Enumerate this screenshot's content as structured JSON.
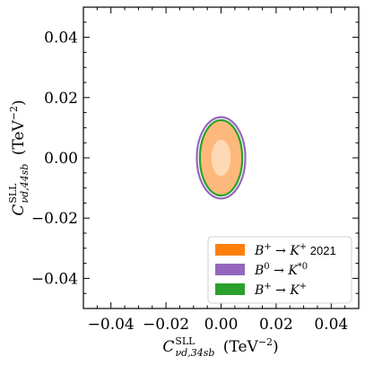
{
  "chart_data": {
    "type": "contour",
    "xlabel": "C^SLL_νd,34sb (TeV⁻²)",
    "xlabel_parts": {
      "symbol": "C",
      "sup": "SLL",
      "sub": "νd,34sb",
      "unit": "(TeV⁻²)"
    },
    "ylabel": "C^SLL_νd,44sb (TeV⁻²)",
    "ylabel_parts": {
      "symbol": "C",
      "sup": "SLL",
      "sub": "νd,44sb",
      "unit": "(TeV⁻²)"
    },
    "xlim": [
      -0.05,
      0.05
    ],
    "ylim": [
      -0.05,
      0.05
    ],
    "xticks": [
      -0.04,
      -0.02,
      0.0,
      0.02,
      0.04
    ],
    "xtick_labels": [
      "−0.04",
      "−0.02",
      "0.00",
      "0.02",
      "0.04"
    ],
    "yticks": [
      -0.04,
      -0.02,
      0.0,
      0.02,
      0.04
    ],
    "ytick_labels": [
      "−0.04",
      "−0.02",
      "0.00",
      "0.02",
      "0.04"
    ],
    "grid": false,
    "legend_position": "bottom-right",
    "series": [
      {
        "name": "B⁰ → K*⁰",
        "name_parts": {
          "lhs": "B",
          "lhs_sup": "0",
          "rhs": "K",
          "rhs_sup": "*0",
          "suffix": ""
        },
        "color": "#9467bd",
        "style": "outline",
        "ellipses": [
          {
            "cx": 0.0,
            "cy": 0.0,
            "rx": 0.0088,
            "ry": 0.0135
          }
        ]
      },
      {
        "name": "B⁺ → K⁺",
        "name_parts": {
          "lhs": "B",
          "lhs_sup": "+",
          "rhs": "K",
          "rhs_sup": "+",
          "suffix": ""
        },
        "color": "#2ca02c",
        "style": "outline",
        "ellipses": [
          {
            "cx": 0.0,
            "cy": 0.0,
            "rx": 0.0077,
            "ry": 0.0125
          }
        ]
      },
      {
        "name": "B⁺ → K⁺ 2021",
        "name_parts": {
          "lhs": "B",
          "lhs_sup": "+",
          "rhs": "K",
          "rhs_sup": "+",
          "suffix": "2021"
        },
        "color": "#ff7f0e",
        "style": "filled",
        "ellipses": [
          {
            "level": "2σ",
            "cx": 0.0,
            "cy": 0.0,
            "rx": 0.0078,
            "ry": 0.0122,
            "fill": "#fdb97c"
          },
          {
            "level": "1σ",
            "cx": 0.0,
            "cy": 0.0,
            "rx": 0.0035,
            "ry": 0.006,
            "fill": "#fed9b5"
          }
        ]
      }
    ],
    "legend_order": [
      2,
      0,
      1
    ]
  }
}
